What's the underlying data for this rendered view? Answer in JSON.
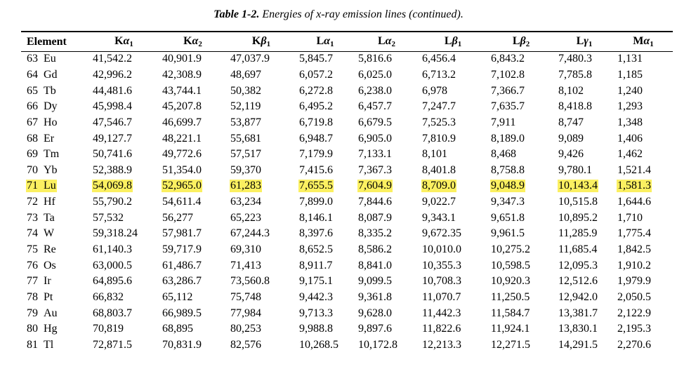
{
  "caption": {
    "label": "Table 1-2.",
    "text": "Energies of x-ray emission lines (continued)."
  },
  "columns": [
    {
      "key": "element",
      "text": "Element"
    },
    {
      "key": "ka1",
      "base": "K",
      "greek": "α",
      "sub": "1"
    },
    {
      "key": "ka2",
      "base": "K",
      "greek": "α",
      "sub": "2"
    },
    {
      "key": "kb1",
      "base": "K",
      "greek": "β",
      "sub": "1"
    },
    {
      "key": "la1",
      "base": "L",
      "greek": "α",
      "sub": "1"
    },
    {
      "key": "la2",
      "base": "L",
      "greek": "α",
      "sub": "2"
    },
    {
      "key": "lb1",
      "base": "L",
      "greek": "β",
      "sub": "1"
    },
    {
      "key": "lb2",
      "base": "L",
      "greek": "β",
      "sub": "2"
    },
    {
      "key": "lg1",
      "base": "L",
      "greek": "γ",
      "sub": "1"
    },
    {
      "key": "ma1",
      "base": "M",
      "greek": "α",
      "sub": "1"
    }
  ],
  "highlight_color": "#fbf061",
  "rows": [
    {
      "z": "63",
      "sym": "Eu",
      "values": [
        "41,542.2",
        "40,901.9",
        "47,037.9",
        "5,845.7",
        "5,816.6",
        "6,456.4",
        "6,843.2",
        "7,480.3",
        "1,131"
      ]
    },
    {
      "z": "64",
      "sym": "Gd",
      "values": [
        "42,996.2",
        "42,308.9",
        "48,697",
        "6,057.2",
        "6,025.0",
        "6,713.2",
        "7,102.8",
        "7,785.8",
        "1,185"
      ]
    },
    {
      "z": "65",
      "sym": "Tb",
      "values": [
        "44,481.6",
        "43,744.1",
        "50,382",
        "6,272.8",
        "6,238.0",
        "6,978",
        "7,366.7",
        "8,102",
        "1,240"
      ]
    },
    {
      "z": "66",
      "sym": "Dy",
      "values": [
        "45,998.4",
        "45,207.8",
        "52,119",
        "6,495.2",
        "6,457.7",
        "7,247.7",
        "7,635.7",
        "8,418.8",
        "1,293"
      ]
    },
    {
      "z": "67",
      "sym": "Ho",
      "values": [
        "47,546.7",
        "46,699.7",
        "53,877",
        "6,719.8",
        "6,679.5",
        "7,525.3",
        "7,911",
        "8,747",
        "1,348"
      ]
    },
    {
      "z": "68",
      "sym": "Er",
      "values": [
        "49,127.7",
        "48,221.1",
        "55,681",
        "6,948.7",
        "6,905.0",
        "7,810.9",
        "8,189.0",
        "9,089",
        "1,406"
      ]
    },
    {
      "z": "69",
      "sym": "Tm",
      "values": [
        "50,741.6",
        "49,772.6",
        "57,517",
        "7,179.9",
        "7,133.1",
        "8,101",
        "8,468",
        "9,426",
        "1,462"
      ]
    },
    {
      "z": "70",
      "sym": "Yb",
      "values": [
        "52,388.9",
        "51,354.0",
        "59,370",
        "7,415.6",
        "7,367.3",
        "8,401.8",
        "8,758.8",
        "9,780.1",
        "1,521.4"
      ]
    },
    {
      "z": "71",
      "sym": "Lu",
      "highlight": true,
      "values": [
        "54,069.8",
        "52,965.0",
        "61,283",
        "7,655.5",
        "7,604.9",
        "8,709.0",
        "9,048.9",
        "10,143.4",
        "1,581.3"
      ]
    },
    {
      "z": "72",
      "sym": "Hf",
      "values": [
        "55,790.2",
        "54,611.4",
        "63,234",
        "7,899.0",
        "7,844.6",
        "9,022.7",
        "9,347.3",
        "10,515.8",
        "1,644.6"
      ]
    },
    {
      "z": "73",
      "sym": "Ta",
      "values": [
        "57,532",
        "56,277",
        "65,223",
        "8,146.1",
        "8,087.9",
        "9,343.1",
        "9,651.8",
        "10,895.2",
        "1,710"
      ]
    },
    {
      "z": "74",
      "sym": "W",
      "values": [
        "59,318.24",
        "57,981.7",
        "67,244.3",
        "8,397.6",
        "8,335.2",
        "9,672.35",
        "9,961.5",
        "11,285.9",
        "1,775.4"
      ]
    },
    {
      "z": "75",
      "sym": "Re",
      "values": [
        "61,140.3",
        "59,717.9",
        "69,310",
        "8,652.5",
        "8,586.2",
        "10,010.0",
        "10,275.2",
        "11,685.4",
        "1,842.5"
      ]
    },
    {
      "z": "76",
      "sym": "Os",
      "values": [
        "63,000.5",
        "61,486.7",
        "71,413",
        "8,911.7",
        "8,841.0",
        "10,355.3",
        "10,598.5",
        "12,095.3",
        "1,910.2"
      ]
    },
    {
      "z": "77",
      "sym": "Ir",
      "values": [
        "64,895.6",
        "63,286.7",
        "73,560.8",
        "9,175.1",
        "9,099.5",
        "10,708.3",
        "10,920.3",
        "12,512.6",
        "1,979.9"
      ]
    },
    {
      "z": "78",
      "sym": "Pt",
      "values": [
        "66,832",
        "65,112",
        "75,748",
        "9,442.3",
        "9,361.8",
        "11,070.7",
        "11,250.5",
        "12,942.0",
        "2,050.5"
      ]
    },
    {
      "z": "79",
      "sym": "Au",
      "values": [
        "68,803.7",
        "66,989.5",
        "77,984",
        "9,713.3",
        "9,628.0",
        "11,442.3",
        "11,584.7",
        "13,381.7",
        "2,122.9"
      ]
    },
    {
      "z": "80",
      "sym": "Hg",
      "values": [
        "70,819",
        "68,895",
        "80,253",
        "9,988.8",
        "9,897.6",
        "11,822.6",
        "11,924.1",
        "13,830.1",
        "2,195.3"
      ]
    },
    {
      "z": "81",
      "sym": "Tl",
      "values": [
        "72,871.5",
        "70,831.9",
        "82,576",
        "10,268.5",
        "10,172.8",
        "12,213.3",
        "12,271.5",
        "14,291.5",
        "2,270.6"
      ]
    }
  ]
}
